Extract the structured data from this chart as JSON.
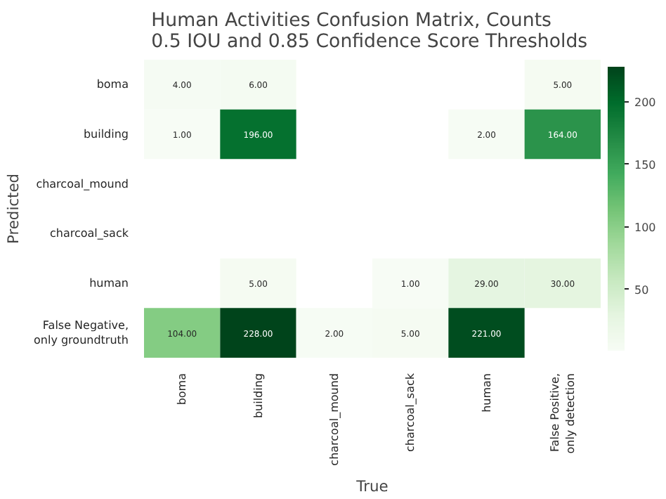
{
  "chart_data": {
    "type": "heatmap",
    "title": "Human Activities Confusion Matrix, Counts\n0.5 IOU and  0.85 Confidence Score Thresholds",
    "xlabel": "True",
    "ylabel": "Predicted",
    "categories": [
      "boma",
      "building",
      "charcoal_mound",
      "charcoal_sack",
      "human",
      "False Positive,\nonly detection"
    ],
    "y_categories": [
      "boma",
      "building",
      "charcoal_mound",
      "charcoal_sack",
      "human",
      "False Negative,\nonly groundtruth"
    ],
    "cells": [
      [
        4,
        6,
        null,
        null,
        null,
        5
      ],
      [
        1,
        196,
        null,
        null,
        2,
        164
      ],
      [
        null,
        null,
        null,
        null,
        null,
        null
      ],
      [
        null,
        null,
        null,
        null,
        null,
        null
      ],
      [
        null,
        5,
        null,
        1,
        29,
        30
      ],
      [
        104,
        228,
        2,
        5,
        221,
        null
      ]
    ],
    "cell_labels": [
      [
        "4.00",
        "6.00",
        null,
        null,
        null,
        "5.00"
      ],
      [
        "1.00",
        "196.00",
        null,
        null,
        "2.00",
        "164.00"
      ],
      [
        null,
        null,
        null,
        null,
        null,
        null
      ],
      [
        null,
        null,
        null,
        null,
        null,
        null
      ],
      [
        null,
        "5.00",
        null,
        "1.00",
        "29.00",
        "30.00"
      ],
      [
        "104.00",
        "228.00",
        "2.00",
        "5.00",
        "221.00",
        null
      ]
    ],
    "clim": [
      1,
      228
    ],
    "cticks": [
      50,
      100,
      150,
      200
    ]
  }
}
